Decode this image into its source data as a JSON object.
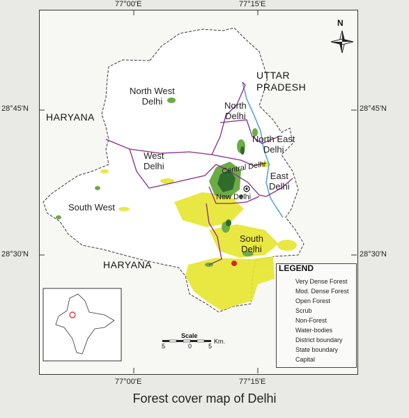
{
  "title": "Forest cover map of Delhi",
  "north_label": "N",
  "coordinates": {
    "top": [
      "77°00'E",
      "77°15'E"
    ],
    "bottom": [
      "77°00'E",
      "77°15'E"
    ],
    "left": [
      "28°45'N",
      "28°30'N"
    ],
    "right": [
      "28°45'N",
      "28°30'N"
    ]
  },
  "states": {
    "haryana_north": "HARYANA",
    "haryana_south": "HARYANA",
    "uttar_pradesh_line1": "UTTAR",
    "uttar_pradesh_line2": "PRADESH"
  },
  "districts": {
    "north_west": [
      "North West",
      "Delhi"
    ],
    "north": [
      "North",
      "Delhi"
    ],
    "north_east": [
      "North East",
      "Delhi"
    ],
    "west": [
      "West",
      "Delhi"
    ],
    "central": "Central Delhi",
    "east": [
      "East",
      "Delhi"
    ],
    "new_delhi": "New Delhi",
    "south_west": "South West",
    "south": [
      "South",
      "Delhi"
    ]
  },
  "legend": {
    "title": "LEGEND",
    "items": [
      {
        "label": "Very Dense Forest",
        "color": "#2f6b2a",
        "kind": "fill"
      },
      {
        "label": "Mod. Dense Forest",
        "color": "#6dab45",
        "kind": "fill"
      },
      {
        "label": "Open Forest",
        "color": "#e7e52e",
        "kind": "fill"
      },
      {
        "label": "Scrub",
        "color": "#d9261f",
        "kind": "fill"
      },
      {
        "label": "Non-Forest",
        "color": "#ffffff",
        "kind": "fill"
      },
      {
        "label": "Water-bodies",
        "color": "#5aa3d6",
        "kind": "water"
      },
      {
        "label": "District boundary",
        "color": "#8a2a8a",
        "kind": "district"
      },
      {
        "label": "State boundary",
        "color": "#333333",
        "kind": "state"
      },
      {
        "label": "Capital",
        "color": "#111111",
        "kind": "capital"
      }
    ]
  },
  "scale": {
    "label": "Scale",
    "left": "5",
    "mid": "0",
    "right": "5",
    "unit": "Km."
  }
}
